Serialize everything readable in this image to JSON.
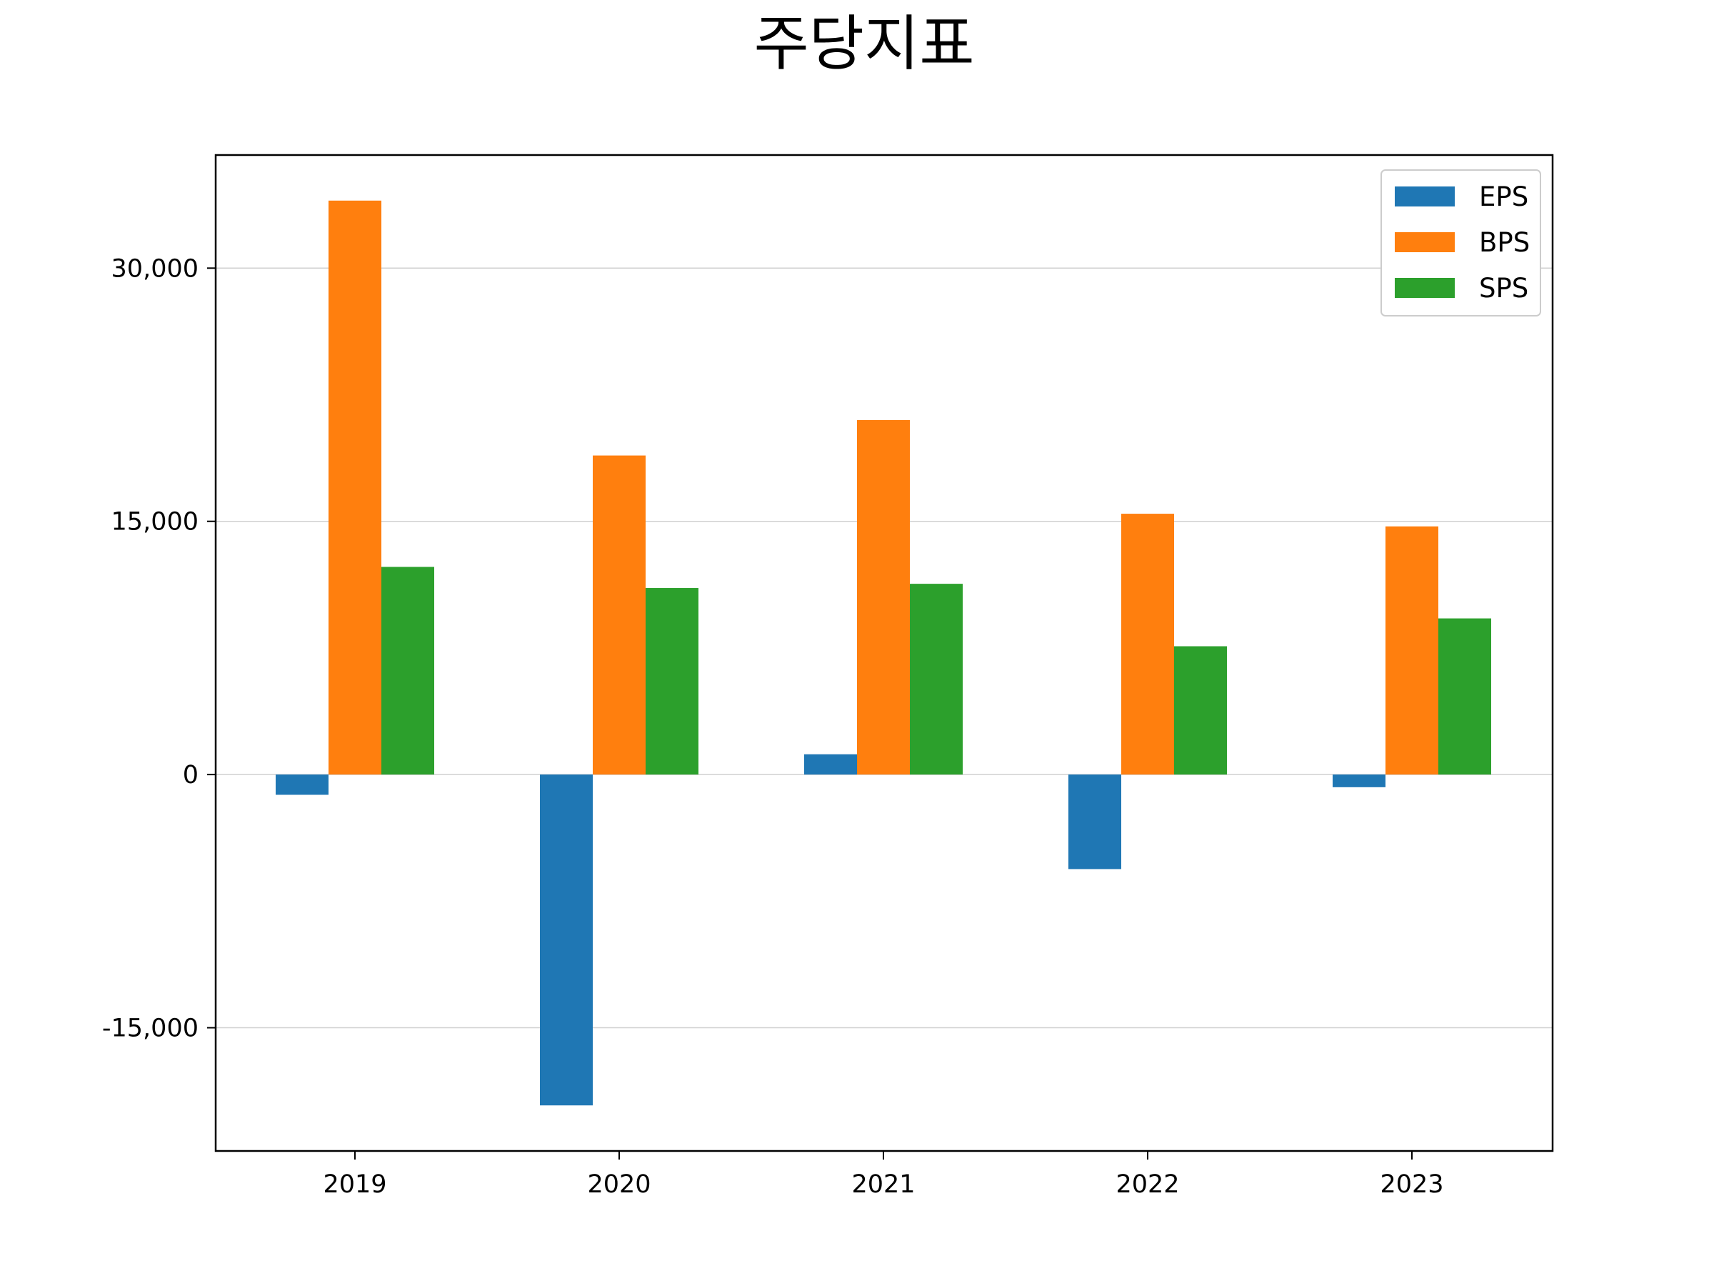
{
  "chart_data": {
    "type": "bar",
    "title": "주당지표",
    "xlabel": "",
    "ylabel": "",
    "categories": [
      "2019",
      "2020",
      "2021",
      "2022",
      "2023"
    ],
    "series": [
      {
        "name": "EPS",
        "color": "#1f77b4",
        "values": [
          -1200,
          -19600,
          1200,
          -5600,
          -750
        ]
      },
      {
        "name": "BPS",
        "color": "#ff7f0e",
        "values": [
          34000,
          18900,
          21000,
          15450,
          14700
        ]
      },
      {
        "name": "SPS",
        "color": "#2ca02c",
        "values": [
          12300,
          11050,
          11300,
          7600,
          9250
        ]
      }
    ],
    "ylim": [
      -22300,
      36700
    ],
    "yticks": [
      -15000,
      0,
      15000,
      30000
    ],
    "ytick_labels": [
      "-15,000",
      "0",
      "15,000",
      "30,000"
    ],
    "grid": "horizontal",
    "legend_position": "top-right"
  }
}
